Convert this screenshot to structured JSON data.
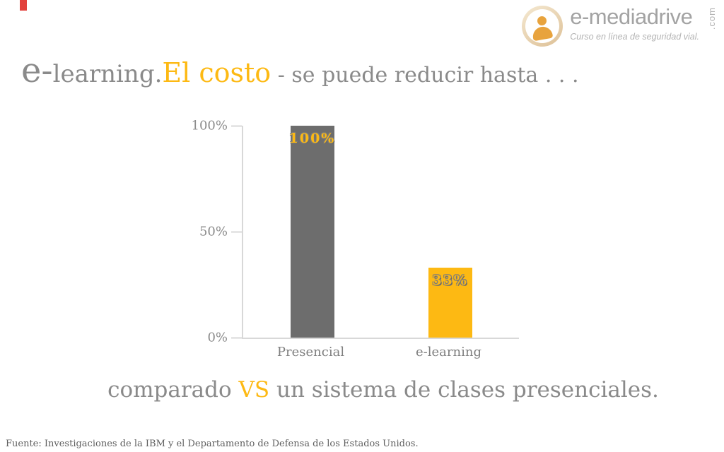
{
  "decor": {
    "red_mark_color": "#e2413c"
  },
  "logo": {
    "brand": "e-mediadrive",
    "tld": ".com",
    "tagline": "Curso en línea de seguridad vial."
  },
  "title": {
    "e": "e-",
    "learning": "learning.",
    "highlight": "El costo",
    "rest": " - se puede reducir hasta . . ."
  },
  "chart_data": {
    "type": "bar",
    "title": "",
    "categories": [
      "Presencial",
      "e-learning"
    ],
    "values": [
      100,
      33
    ],
    "value_labels": [
      "100%",
      "33%"
    ],
    "bar_colors": [
      "#6d6d6d",
      "#fdb913"
    ],
    "y_ticks": [
      {
        "label": "100%",
        "value": 100
      },
      {
        "label": "50%",
        "value": 50
      },
      {
        "label": "0%",
        "value": 0
      }
    ],
    "ylim": [
      0,
      100
    ],
    "grid": false,
    "legend": false,
    "value_label_color": "#fdb913"
  },
  "caption": {
    "before": "comparado ",
    "vs": "VS",
    "after": " un sistema de clases presenciales."
  },
  "footer": {
    "source": "Fuente: Investigaciones de la IBM y el Departamento de Defensa de los Estados Unidos."
  },
  "colors": {
    "accent": "#fdb913",
    "gray_text": "#8a8a8a",
    "dark_bar": "#6d6d6d",
    "axis": "#d8d8d8"
  }
}
